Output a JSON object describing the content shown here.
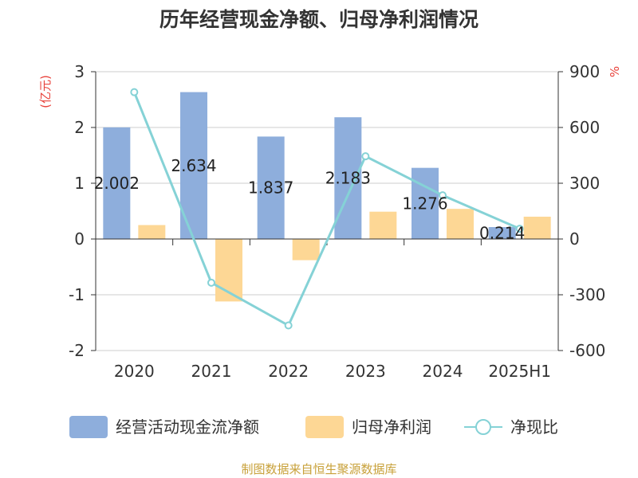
{
  "chart_data": {
    "type": "bar",
    "title": "历年经营现金净额、归母净利润情况",
    "categories": [
      "2020",
      "2021",
      "2022",
      "2023",
      "2024",
      "2025H1"
    ],
    "series": [
      {
        "name": "经营活动现金流净额",
        "type": "bar",
        "axis": "left",
        "color": "#8eaedc",
        "values": [
          2.002,
          2.634,
          1.837,
          2.183,
          1.276,
          0.214
        ],
        "labels": [
          "2.002",
          "2.634",
          "1.837",
          "2.183",
          "1.276",
          "0.214"
        ]
      },
      {
        "name": "归母净利润",
        "type": "bar",
        "axis": "left",
        "color": "#fdd795",
        "values": [
          0.25,
          -1.12,
          -0.38,
          0.49,
          0.54,
          0.4
        ]
      },
      {
        "name": "净现比",
        "type": "line",
        "axis": "right",
        "color": "#85d2d6",
        "values": [
          790,
          -235,
          -465,
          445,
          235,
          55
        ]
      }
    ],
    "y_left": {
      "unit": "(亿元)",
      "ticks": [
        "3",
        "2",
        "1",
        "0",
        "-1",
        "-2"
      ],
      "min": -2,
      "max": 3
    },
    "y_right": {
      "unit": "%",
      "ticks": [
        "900",
        "600",
        "300",
        "0",
        "-300",
        "-600"
      ],
      "min": -600,
      "max": 900
    },
    "grid": true,
    "legend_position": "bottom",
    "source": "制图数据来自恒生聚源数据库",
    "unit_color": "#e8413a",
    "source_color": "#c8a13a"
  }
}
